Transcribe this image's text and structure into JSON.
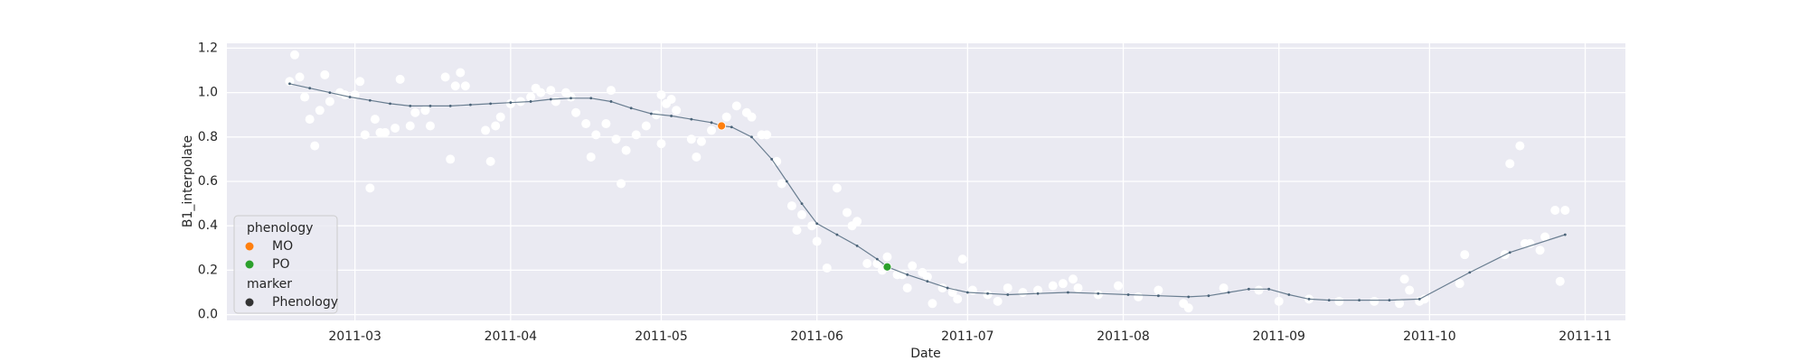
{
  "chart_data": {
    "type": "line",
    "x_label": "Date",
    "y_label": "B1_interpolate",
    "xlim": [
      34.5,
      313
    ],
    "ylim": [
      -0.026,
      1.222
    ],
    "xticks": [
      {
        "value": 60,
        "label": "2011-03"
      },
      {
        "value": 91,
        "label": "2011-04"
      },
      {
        "value": 121,
        "label": "2011-05"
      },
      {
        "value": 152,
        "label": "2011-06"
      },
      {
        "value": 182,
        "label": "2011-07"
      },
      {
        "value": 213,
        "label": "2011-08"
      },
      {
        "value": 244,
        "label": "2011-09"
      },
      {
        "value": 274,
        "label": "2011-10"
      },
      {
        "value": 305,
        "label": "2011-11"
      }
    ],
    "yticks": [
      {
        "value": 0,
        "label": "0.0"
      },
      0.2,
      0.4,
      0.6,
      0.8,
      {
        "value": 1,
        "label": "1.0"
      },
      1.2
    ],
    "grid": true,
    "background": "#eaeaf2",
    "line": {
      "color": "#4a6378",
      "x": [
        47,
        51,
        55,
        59,
        63,
        67,
        71,
        75,
        79,
        83,
        87,
        91,
        95,
        99,
        103,
        107,
        111,
        115,
        119,
        123,
        127,
        131,
        133,
        135,
        139,
        143,
        146,
        149,
        152,
        156,
        160,
        164,
        166,
        170,
        174,
        178,
        182,
        186,
        190,
        196,
        202,
        208,
        214,
        220,
        226,
        230,
        234,
        238,
        242,
        246,
        250,
        254,
        260,
        266,
        272,
        282,
        290,
        301
      ],
      "values": [
        1.04,
        1.02,
        1.0,
        0.98,
        0.965,
        0.95,
        0.94,
        0.94,
        0.94,
        0.945,
        0.95,
        0.955,
        0.96,
        0.97,
        0.975,
        0.975,
        0.96,
        0.93,
        0.905,
        0.895,
        0.88,
        0.865,
        0.85,
        0.845,
        0.8,
        0.7,
        0.6,
        0.5,
        0.41,
        0.36,
        0.31,
        0.25,
        0.215,
        0.18,
        0.15,
        0.12,
        0.1,
        0.095,
        0.09,
        0.095,
        0.1,
        0.095,
        0.09,
        0.085,
        0.08,
        0.085,
        0.1,
        0.115,
        0.115,
        0.09,
        0.07,
        0.065,
        0.065,
        0.065,
        0.07,
        0.19,
        0.28,
        0.36
      ]
    },
    "points": {
      "color": "#ffffff",
      "x": [
        47,
        48,
        49,
        50,
        51,
        52,
        53,
        54,
        55,
        57,
        58,
        60,
        61,
        62,
        63,
        64,
        65,
        66,
        68,
        69,
        71,
        72,
        74,
        75,
        78,
        79,
        80,
        81,
        82,
        86,
        87,
        88,
        89,
        91,
        93,
        95,
        96,
        97,
        99,
        100,
        102,
        103,
        104,
        106,
        107,
        108,
        110,
        111,
        112,
        113,
        114,
        116,
        118,
        120,
        121,
        121,
        122,
        123,
        124,
        127,
        128,
        129,
        131,
        134,
        136,
        138,
        139,
        141,
        142,
        144,
        145,
        147,
        148,
        149,
        151,
        152,
        154,
        156,
        158,
        159,
        160,
        162,
        164,
        165,
        166,
        168,
        169,
        170,
        171,
        173,
        174,
        175,
        177,
        179,
        180,
        181,
        183,
        186,
        188,
        190,
        193,
        196,
        199,
        201,
        203,
        204,
        208,
        212,
        216,
        220,
        225,
        226,
        233,
        240,
        244,
        250,
        256,
        263,
        268,
        269,
        270,
        272,
        273,
        280,
        281,
        289,
        290,
        292,
        293,
        294,
        296,
        297,
        299,
        300,
        301
      ],
      "values": [
        1.05,
        1.17,
        1.07,
        0.98,
        0.88,
        0.76,
        0.92,
        1.08,
        0.96,
        1.0,
        0.99,
        0.99,
        1.05,
        0.81,
        0.57,
        0.88,
        0.82,
        0.82,
        0.84,
        1.06,
        0.85,
        0.91,
        0.92,
        0.85,
        1.07,
        0.7,
        1.03,
        1.09,
        1.03,
        0.83,
        0.69,
        0.85,
        0.89,
        0.95,
        0.96,
        0.98,
        1.02,
        1.0,
        1.01,
        0.96,
        1.0,
        0.98,
        0.91,
        0.86,
        0.71,
        0.81,
        0.86,
        1.01,
        0.79,
        0.59,
        0.74,
        0.81,
        0.85,
        0.9,
        0.99,
        0.77,
        0.95,
        0.97,
        0.92,
        0.79,
        0.71,
        0.78,
        0.83,
        0.89,
        0.94,
        0.91,
        0.89,
        0.81,
        0.81,
        0.69,
        0.59,
        0.49,
        0.38,
        0.45,
        0.4,
        0.33,
        0.21,
        0.57,
        0.46,
        0.4,
        0.42,
        0.23,
        0.23,
        0.2,
        0.26,
        0.18,
        0.18,
        0.12,
        0.22,
        0.19,
        0.17,
        0.05,
        0.12,
        0.1,
        0.07,
        0.25,
        0.11,
        0.09,
        0.06,
        0.12,
        0.1,
        0.11,
        0.13,
        0.14,
        0.16,
        0.12,
        0.09,
        0.13,
        0.08,
        0.11,
        0.05,
        0.03,
        0.12,
        0.11,
        0.06,
        0.07,
        0.06,
        0.06,
        0.05,
        0.16,
        0.11,
        0.06,
        0.07,
        0.14,
        0.27,
        0.27,
        0.68,
        0.76,
        0.32,
        0.32,
        0.29,
        0.35,
        0.47,
        0.15,
        0.47
      ]
    },
    "legend_title": "phenology",
    "series": [
      {
        "name": "MO",
        "color": "#ff7f0e",
        "x": [
          133
        ],
        "values": [
          0.85
        ]
      },
      {
        "name": "PO",
        "color": "#2ca02c",
        "x": [
          166
        ],
        "values": [
          0.215
        ]
      }
    ],
    "marker_legend": {
      "title": "marker",
      "name": "Phenology",
      "color": "#333333"
    }
  }
}
